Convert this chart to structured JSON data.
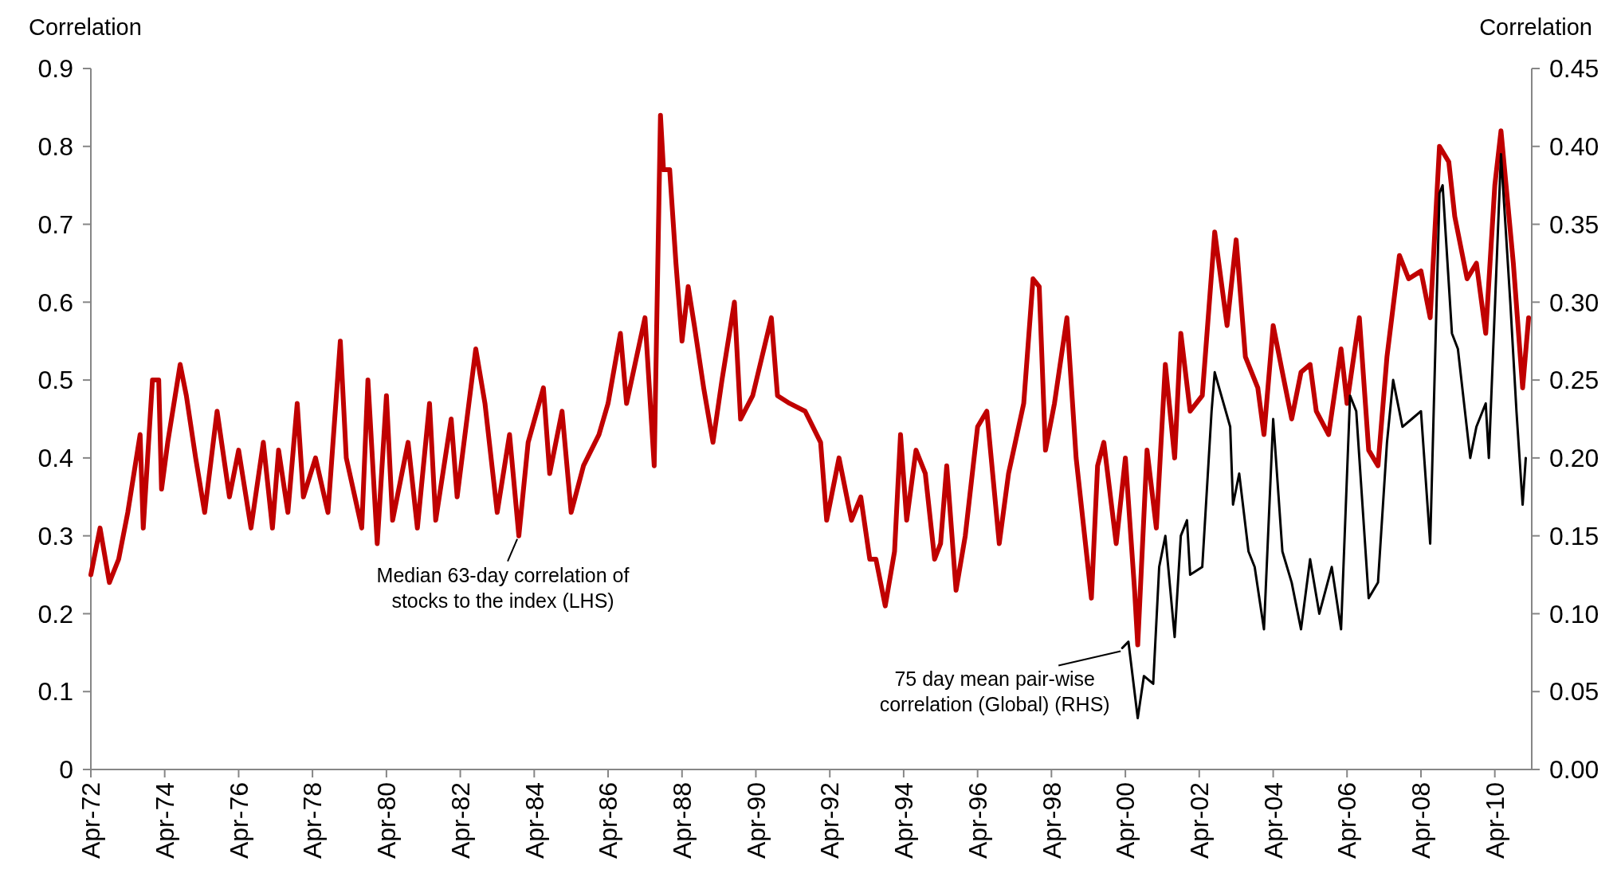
{
  "chart_data": {
    "type": "line",
    "ylabel": "Correlation",
    "y2label": "Correlation",
    "xlim": [
      "1972-04",
      "2011-04"
    ],
    "xticks": [
      {
        "value": "1972-04",
        "label": "Apr-72"
      },
      {
        "value": "1974-04",
        "label": "Apr-74"
      },
      {
        "value": "1976-04",
        "label": "Apr-76"
      },
      {
        "value": "1978-04",
        "label": "Apr-78"
      },
      {
        "value": "1980-04",
        "label": "Apr-80"
      },
      {
        "value": "1982-04",
        "label": "Apr-82"
      },
      {
        "value": "1984-04",
        "label": "Apr-84"
      },
      {
        "value": "1986-04",
        "label": "Apr-86"
      },
      {
        "value": "1988-04",
        "label": "Apr-88"
      },
      {
        "value": "1990-04",
        "label": "Apr-90"
      },
      {
        "value": "1992-04",
        "label": "Apr-92"
      },
      {
        "value": "1994-04",
        "label": "Apr-94"
      },
      {
        "value": "1996-04",
        "label": "Apr-96"
      },
      {
        "value": "1998-04",
        "label": "Apr-98"
      },
      {
        "value": "2000-04",
        "label": "Apr-00"
      },
      {
        "value": "2002-04",
        "label": "Apr-02"
      },
      {
        "value": "2004-04",
        "label": "Apr-04"
      },
      {
        "value": "2006-04",
        "label": "Apr-06"
      },
      {
        "value": "2008-04",
        "label": "Apr-08"
      },
      {
        "value": "2010-04",
        "label": "Apr-10"
      }
    ],
    "ylim": [
      0,
      0.9
    ],
    "yticks": [
      0,
      0.1,
      0.2,
      0.3,
      0.4,
      0.5,
      0.6,
      0.7,
      0.8,
      0.9
    ],
    "y2lim": [
      0,
      0.45
    ],
    "y2ticks": [
      {
        "value": 0,
        "label": "0.00"
      },
      {
        "value": 0.05,
        "label": "0.05"
      },
      {
        "value": 0.1,
        "label": "0.10"
      },
      {
        "value": 0.15,
        "label": "0.15"
      },
      {
        "value": 0.2,
        "label": "0.20"
      },
      {
        "value": 0.25,
        "label": "0.25"
      },
      {
        "value": 0.3,
        "label": "0.30"
      },
      {
        "value": 0.35,
        "label": "0.35"
      },
      {
        "value": 0.4,
        "label": "0.40"
      },
      {
        "value": 0.45,
        "label": "0.45"
      }
    ],
    "grid": false,
    "marker": "none",
    "line_style": "solid",
    "series": [
      {
        "color": "#c00000",
        "x": [
          "1972-04",
          "1972-07",
          "1972-10",
          "1973-01",
          "1973-04",
          "1973-08",
          "1973-09",
          "1973-12",
          "1974-02",
          "1974-03",
          "1974-05",
          "1974-09",
          "1974-11",
          "1975-02",
          "1975-05",
          "1975-09",
          "1976-01",
          "1976-04",
          "1976-08",
          "1976-12",
          "1977-03",
          "1977-05",
          "1977-08",
          "1977-11",
          "1978-01",
          "1978-05",
          "1978-09",
          "1979-01",
          "1979-03",
          "1979-08",
          "1979-10",
          "1980-01",
          "1980-04",
          "1980-06",
          "1980-11",
          "1981-02",
          "1981-06",
          "1981-08",
          "1982-01",
          "1982-03",
          "1982-09",
          "1982-12",
          "1983-04",
          "1983-08",
          "1983-11",
          "1984-02",
          "1984-07",
          "1984-09",
          "1985-01",
          "1985-04",
          "1985-08",
          "1986-01",
          "1986-04",
          "1986-08",
          "1986-10",
          "1987-04",
          "1987-07",
          "1987-09",
          "1987-10",
          "1987-12",
          "1988-02",
          "1988-04",
          "1988-06",
          "1988-08",
          "1988-11",
          "1989-02",
          "1989-05",
          "1989-09",
          "1989-11",
          "1990-03",
          "1990-09",
          "1990-11",
          "1991-03",
          "1991-08",
          "1992-01",
          "1992-03",
          "1992-07",
          "1992-11",
          "1993-02",
          "1993-05",
          "1993-07",
          "1993-10",
          "1994-01",
          "1994-03",
          "1994-05",
          "1994-08",
          "1994-11",
          "1995-02",
          "1995-04",
          "1995-06",
          "1995-09",
          "1995-12",
          "1996-04",
          "1996-07",
          "1996-11",
          "1997-02",
          "1997-07",
          "1997-10",
          "1997-12",
          "1998-02",
          "1998-05",
          "1998-09",
          "1998-12",
          "1999-05",
          "1999-07",
          "1999-09",
          "2000-01",
          "2000-04",
          "2000-07",
          "2000-08",
          "2000-11",
          "2001-02",
          "2001-05",
          "2001-08",
          "2001-10",
          "2002-01",
          "2002-05",
          "2002-09",
          "2003-01",
          "2003-04",
          "2003-07",
          "2003-11",
          "2004-01",
          "2004-04",
          "2004-07",
          "2004-10",
          "2005-01",
          "2005-04",
          "2005-06",
          "2005-10",
          "2006-02",
          "2006-04",
          "2006-08",
          "2006-11",
          "2007-02",
          "2007-05",
          "2007-09",
          "2007-12",
          "2008-04",
          "2008-07",
          "2008-10",
          "2009-01",
          "2009-03",
          "2009-07",
          "2009-10",
          "2010-01",
          "2010-04",
          "2010-06",
          "2010-10",
          "2011-01",
          "2011-03"
        ],
        "values": [
          0.25,
          0.31,
          0.24,
          0.27,
          0.33,
          0.43,
          0.31,
          0.5,
          0.5,
          0.36,
          0.42,
          0.52,
          0.48,
          0.4,
          0.33,
          0.46,
          0.35,
          0.41,
          0.31,
          0.42,
          0.31,
          0.41,
          0.33,
          0.47,
          0.35,
          0.4,
          0.33,
          0.55,
          0.4,
          0.31,
          0.5,
          0.29,
          0.48,
          0.32,
          0.42,
          0.31,
          0.47,
          0.32,
          0.45,
          0.35,
          0.54,
          0.47,
          0.33,
          0.43,
          0.3,
          0.42,
          0.49,
          0.38,
          0.46,
          0.33,
          0.39,
          0.43,
          0.47,
          0.56,
          0.47,
          0.58,
          0.39,
          0.84,
          0.77,
          0.77,
          0.65,
          0.55,
          0.62,
          0.57,
          0.49,
          0.42,
          0.5,
          0.6,
          0.45,
          0.48,
          0.58,
          0.48,
          0.47,
          0.46,
          0.42,
          0.32,
          0.4,
          0.32,
          0.35,
          0.27,
          0.27,
          0.21,
          0.28,
          0.43,
          0.32,
          0.41,
          0.38,
          0.27,
          0.29,
          0.39,
          0.23,
          0.3,
          0.44,
          0.46,
          0.29,
          0.38,
          0.47,
          0.63,
          0.62,
          0.41,
          0.47,
          0.58,
          0.4,
          0.22,
          0.39,
          0.42,
          0.29,
          0.4,
          0.23,
          0.16,
          0.41,
          0.31,
          0.52,
          0.4,
          0.56,
          0.46,
          0.48,
          0.69,
          0.57,
          0.68,
          0.53,
          0.49,
          0.43,
          0.57,
          0.51,
          0.45,
          0.51,
          0.52,
          0.46,
          0.43,
          0.54,
          0.47,
          0.58,
          0.41,
          0.39,
          0.53,
          0.66,
          0.63,
          0.64,
          0.58,
          0.8,
          0.78,
          0.71,
          0.63,
          0.65,
          0.56,
          0.75,
          0.82,
          0.65,
          0.49,
          0.58
        ]
      },
      {
        "color": "#000000",
        "axis": "y2",
        "x": [
          "2000-03",
          "2000-05",
          "2000-08",
          "2000-10",
          "2001-01",
          "2001-03",
          "2001-05",
          "2001-08",
          "2001-10",
          "2001-12",
          "2002-01",
          "2002-05",
          "2002-08",
          "2002-09",
          "2003-02",
          "2003-03",
          "2003-05",
          "2003-08",
          "2003-10",
          "2004-01",
          "2004-04",
          "2004-07",
          "2004-10",
          "2005-01",
          "2005-04",
          "2005-07",
          "2005-11",
          "2006-02",
          "2006-05",
          "2006-07",
          "2006-11",
          "2007-02",
          "2007-05",
          "2007-07",
          "2007-10",
          "2008-01",
          "2008-04",
          "2008-07",
          "2008-10",
          "2008-11",
          "2009-02",
          "2009-04",
          "2009-08",
          "2009-10",
          "2010-01",
          "2010-02",
          "2010-06",
          "2010-09",
          "2010-11",
          "2011-01",
          "2011-02"
        ],
        "values": [
          0.078,
          0.082,
          0.033,
          0.06,
          0.055,
          0.13,
          0.15,
          0.085,
          0.15,
          0.16,
          0.125,
          0.13,
          0.23,
          0.255,
          0.22,
          0.17,
          0.19,
          0.14,
          0.13,
          0.09,
          0.225,
          0.14,
          0.12,
          0.09,
          0.135,
          0.1,
          0.13,
          0.09,
          0.24,
          0.23,
          0.11,
          0.12,
          0.21,
          0.25,
          0.22,
          0.225,
          0.23,
          0.145,
          0.37,
          0.375,
          0.28,
          0.27,
          0.2,
          0.22,
          0.235,
          0.2,
          0.395,
          0.3,
          0.23,
          0.17,
          0.2
        ]
      }
    ],
    "annotations": [
      {
        "text": "Median 63-day correlation of stocks to the index (LHS)",
        "x": "1983-11",
        "y": 0.3
      },
      {
        "text": "75 day mean pair-wise correlation (Global) (RHS)",
        "x": "2000-03",
        "y": 0.156
      }
    ]
  }
}
